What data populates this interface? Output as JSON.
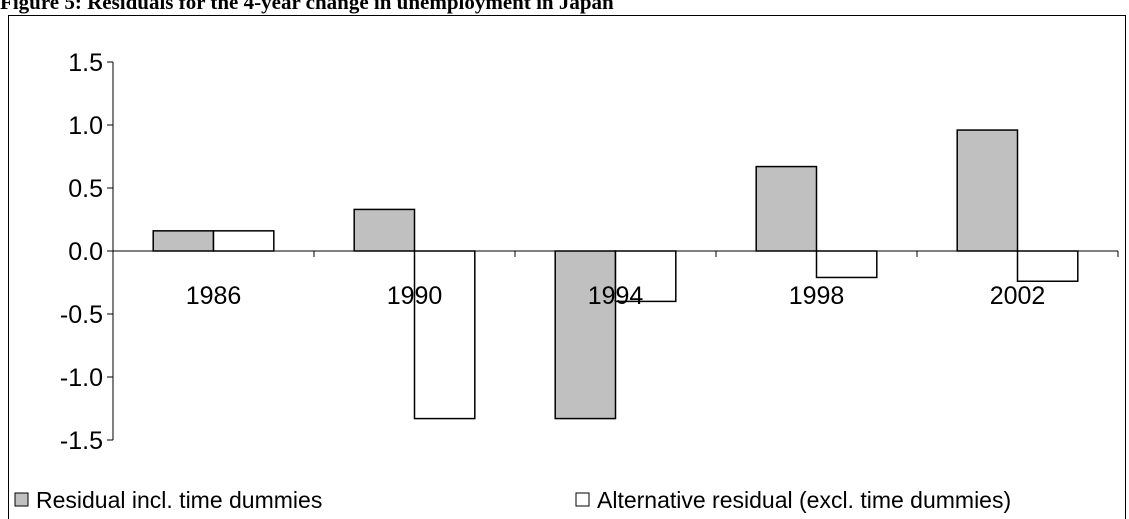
{
  "chart_data": {
    "type": "bar",
    "title": "Figure 5: Residuals for the 4-year change in unemployment in Japan",
    "categories": [
      "1986",
      "1990",
      "1994",
      "1998",
      "2002"
    ],
    "series": [
      {
        "name": "Residual incl. time dummies",
        "color": "#c0c0c0",
        "values": [
          0.16,
          0.33,
          -1.33,
          0.67,
          0.96
        ]
      },
      {
        "name": "Alternative residual (excl. time dummies)",
        "color": "#ffffff",
        "values": [
          0.16,
          -1.33,
          -0.4,
          -0.21,
          -0.24
        ]
      }
    ],
    "ylim": [
      -1.5,
      1.5
    ],
    "yticks": [
      {
        "value": -1.5,
        "label": "-1.5"
      },
      {
        "value": -1.0,
        "label": "-1.0"
      },
      {
        "value": -0.5,
        "label": "-0.5"
      },
      {
        "value": 0,
        "label": "0.0"
      },
      {
        "value": 0.5,
        "label": "0.5"
      },
      {
        "value": 1.0,
        "label": "1.0"
      },
      {
        "value": 1.5,
        "label": "1.5"
      }
    ],
    "grid": false,
    "legend": "bottom"
  }
}
